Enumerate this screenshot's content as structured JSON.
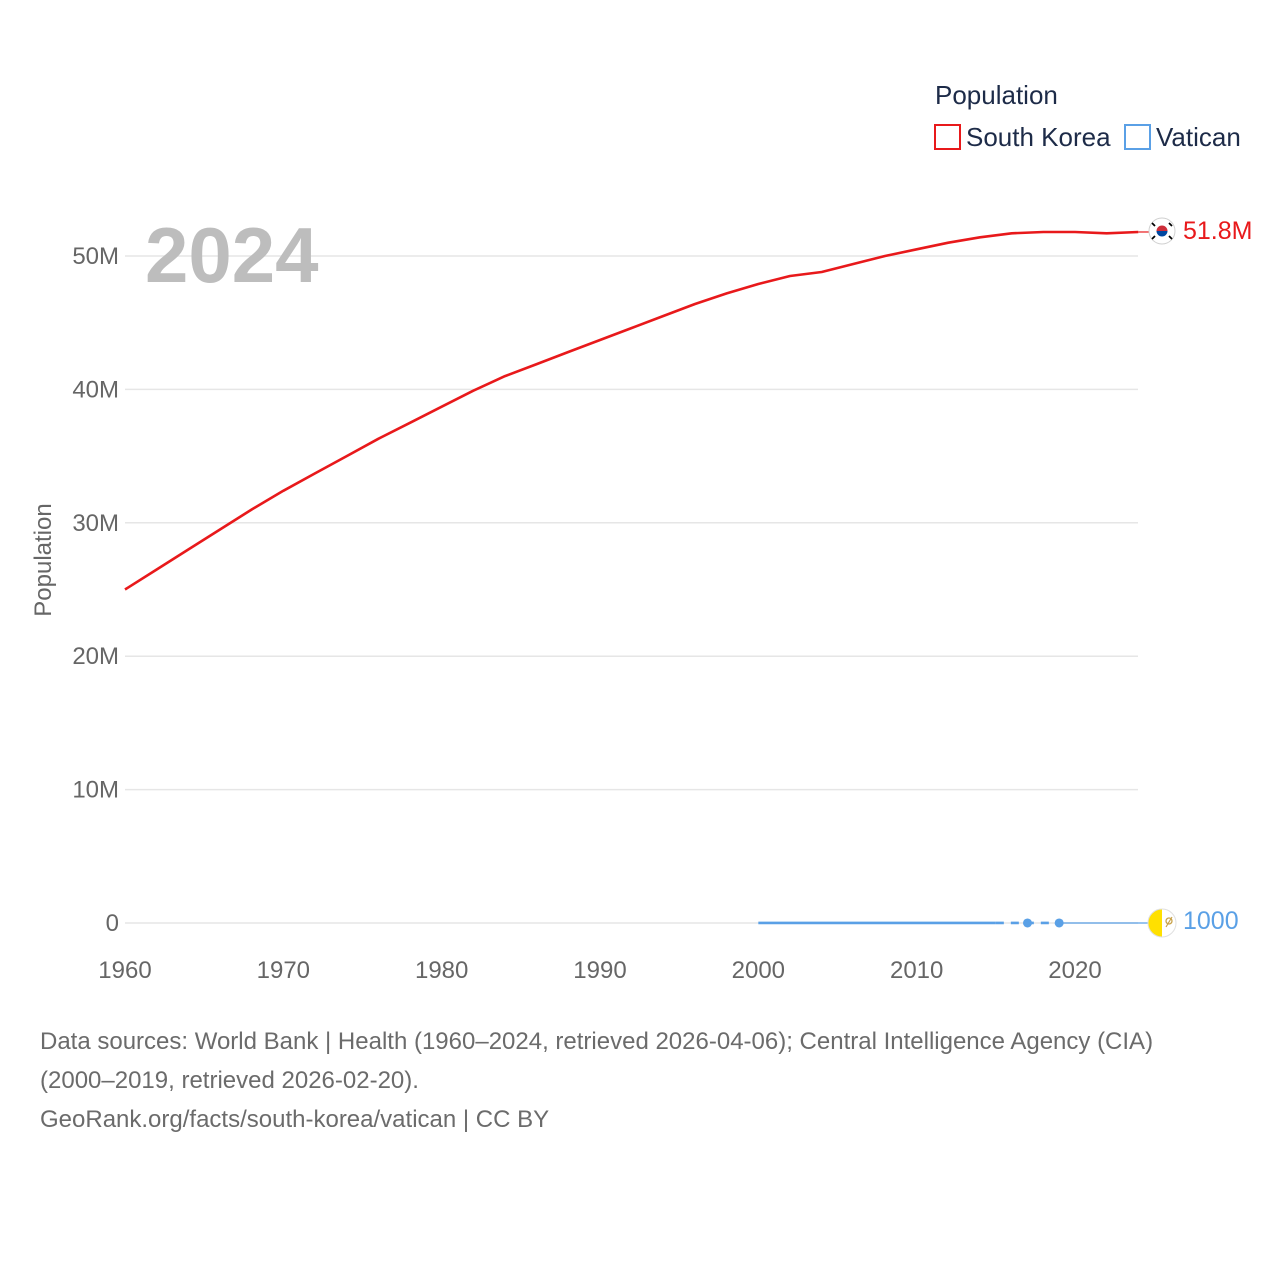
{
  "chart_data": {
    "type": "line",
    "year_display": "2024",
    "legend_title": "Population",
    "ylabel": "Population",
    "xlim": [
      1960,
      2025
    ],
    "ylim": [
      0,
      55000000
    ],
    "x_ticks": [
      {
        "value": 1960,
        "label": "1960"
      },
      {
        "value": 1970,
        "label": "1970"
      },
      {
        "value": 1980,
        "label": "1980"
      },
      {
        "value": 1990,
        "label": "1990"
      },
      {
        "value": 2000,
        "label": "2000"
      },
      {
        "value": 2010,
        "label": "2010"
      },
      {
        "value": 2020,
        "label": "2020"
      }
    ],
    "y_ticks": [
      {
        "value": 0,
        "label": "0"
      },
      {
        "value": 10000000,
        "label": "10M"
      },
      {
        "value": 20000000,
        "label": "20M"
      },
      {
        "value": 30000000,
        "label": "30M"
      },
      {
        "value": 40000000,
        "label": "40M"
      },
      {
        "value": 50000000,
        "label": "50M"
      }
    ],
    "series": [
      {
        "name": "South Korea",
        "color": "#e8191b",
        "end_label": "51.8M",
        "flag": "south-korea-flag-icon",
        "x": [
          1960,
          1962,
          1964,
          1966,
          1968,
          1970,
          1972,
          1974,
          1976,
          1978,
          1980,
          1982,
          1984,
          1986,
          1988,
          1990,
          1992,
          1994,
          1996,
          1998,
          2000,
          2002,
          2004,
          2006,
          2008,
          2010,
          2012,
          2014,
          2016,
          2018,
          2020,
          2022,
          2024
        ],
        "values": [
          25000000,
          26500000,
          28000000,
          29500000,
          31000000,
          32400000,
          33700000,
          35000000,
          36300000,
          37500000,
          38700000,
          39900000,
          41000000,
          41900000,
          42800000,
          43700000,
          44600000,
          45500000,
          46400000,
          47200000,
          47900000,
          48500000,
          48800000,
          49400000,
          50000000,
          50500000,
          51000000,
          51400000,
          51700000,
          51800000,
          51800000,
          51700000,
          51800000
        ]
      },
      {
        "name": "Vatican",
        "color": "#5aa0e6",
        "end_label": "1000",
        "flag": "vatican-flag-icon",
        "x": [
          2000,
          2015,
          2017,
          2019,
          2024
        ],
        "values": [
          1000,
          1000,
          1000,
          1000,
          1000
        ],
        "dashed_from": 2015,
        "markers": [
          2017,
          2019
        ],
        "thin_from": 2019
      }
    ]
  },
  "footer": {
    "line1": "Data sources: World Bank | Health (1960–2024, retrieved 2026-04-06); Central Intelligence Agency (CIA)",
    "line2": "(2000–2019, retrieved 2026-02-20).",
    "line3": "GeoRank.org/facts/south-korea/vatican | CC BY"
  }
}
